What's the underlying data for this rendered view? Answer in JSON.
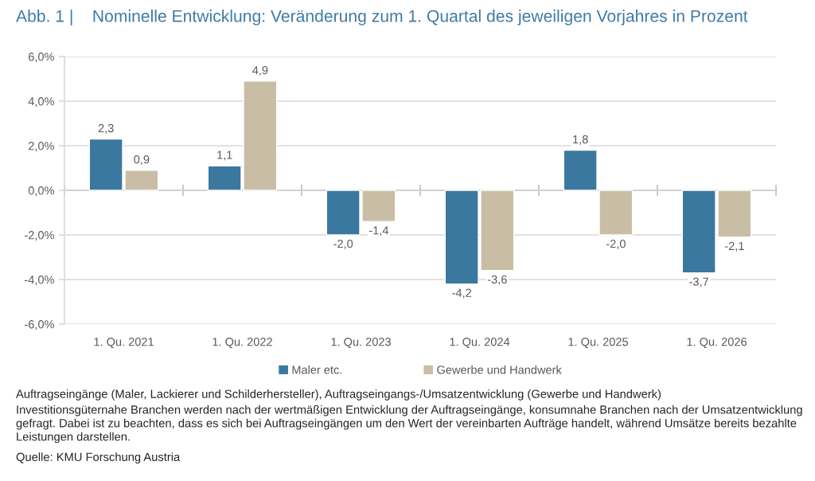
{
  "chart_data": {
    "type": "bar",
    "title": "Abb. 1 |    Nominelle Entwicklung: Veränderung zum 1. Quartal des jeweiligen Vorjahres in Prozent",
    "categories": [
      "1. Qu. 2021",
      "1. Qu. 2022",
      "1. Qu. 2023",
      "1. Qu. 2024",
      "1. Qu. 2025",
      "1. Qu. 2026"
    ],
    "series": [
      {
        "name": "Maler etc.",
        "color": "#3b789f",
        "values": [
          2.3,
          1.1,
          -2.0,
          -4.2,
          1.8,
          -3.7
        ],
        "value_labels": [
          "2,3",
          "1,1",
          "-2,0",
          "-4,2",
          "1,8",
          "-3,7"
        ]
      },
      {
        "name": "Gewerbe und Handwerk",
        "color": "#c9bea5",
        "values": [
          0.9,
          4.9,
          -1.4,
          -3.6,
          -2.0,
          -2.1
        ],
        "value_labels": [
          "0,9",
          "4,9",
          "-1,4",
          "-3,6",
          "-2,0",
          "-2,1"
        ]
      }
    ],
    "ylim": [
      -6,
      6
    ],
    "yticks": [
      {
        "value": -6,
        "label": "-6,0%"
      },
      {
        "value": -4,
        "label": "-4,0%"
      },
      {
        "value": -2,
        "label": "-2,0%"
      },
      {
        "value": 0,
        "label": "0,0%"
      },
      {
        "value": 2,
        "label": "2,0%"
      },
      {
        "value": 4,
        "label": "4,0%"
      },
      {
        "value": 6,
        "label": "6,0%"
      }
    ],
    "grid": "y",
    "legend": "bottom",
    "annotations": [
      "Auftragseingänge (Maler, Lackierer und Schilderhersteller), Auftragseingangs-/Umsatzentwicklung (Gewerbe und Handwerk)",
      "Investitionsgüternahe Branchen werden nach der wertmäßigen Entwicklung der Auftragseingänge, konsumnahe Branchen nach der Umsatzentwicklung gefragt. Dabei ist zu beachten, dass es sich bei Auftragseingängen um den Wert der vereinbarten Aufträge handelt, während Umsätze bereits bezahlte Leistungen darstellen.",
      "Quelle: KMU Forschung Austria"
    ]
  }
}
